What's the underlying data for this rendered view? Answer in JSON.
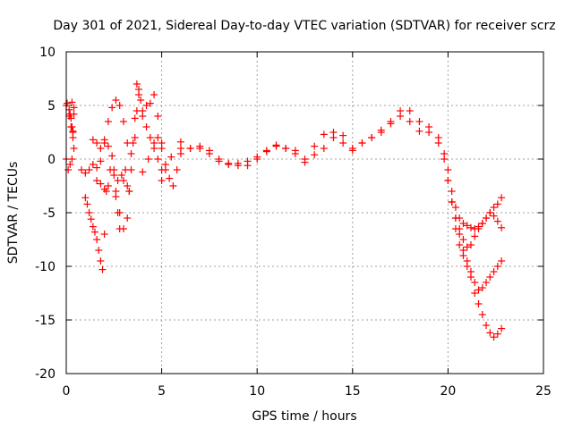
{
  "chart_data": {
    "type": "scatter",
    "title": "Day 301 of 2021, Sidereal Day-to-day VTEC variation (SDTVAR) for receiver scrz",
    "xlabel": "GPS time / hours",
    "ylabel": "SDTVAR / TECUs",
    "xlim": [
      0,
      25
    ],
    "ylim": [
      -20,
      10
    ],
    "xticks": [
      0,
      5,
      10,
      15,
      20,
      25
    ],
    "yticks": [
      -20,
      -15,
      -10,
      -5,
      0,
      5,
      10
    ],
    "grid": true,
    "marker": "+",
    "series": [
      {
        "name": "SDTVAR",
        "color": "#ff0000",
        "x": [
          0.0,
          0.15,
          0.25,
          0.35,
          0.4,
          0.3,
          0.2,
          0.1,
          0.0,
          0.05,
          0.15,
          0.25,
          0.35,
          0.4,
          0.3,
          0.2,
          0.3,
          0.35,
          0.4,
          0.8,
          1.0,
          1.2,
          1.4,
          1.6,
          1.8,
          2.0,
          2.1,
          2.2,
          2.3,
          2.5,
          2.7,
          2.9,
          3.0,
          3.1,
          3.2,
          3.3,
          1.0,
          1.1,
          1.2,
          1.3,
          1.4,
          1.5,
          1.6,
          1.7,
          1.8,
          1.9,
          2.0,
          1.4,
          1.6,
          1.8,
          2.0,
          2.2,
          2.4,
          2.5,
          2.6,
          2.7,
          2.8,
          1.6,
          1.8,
          2.0,
          2.2,
          2.4,
          2.6,
          2.8,
          3.0,
          3.2,
          3.4,
          3.6,
          3.7,
          3.8,
          3.9,
          4.0,
          4.2,
          4.4,
          4.6,
          4.8,
          5.0,
          2.6,
          2.8,
          3.0,
          3.2,
          3.3,
          3.4,
          3.5,
          3.6,
          3.7,
          3.8,
          4.0,
          4.2,
          4.4,
          4.6,
          4.8,
          5.0,
          5.2,
          4.0,
          4.3,
          4.6,
          4.8,
          5.0,
          5.2,
          5.4,
          5.6,
          5.8,
          6.0,
          5.0,
          5.5,
          6.0,
          6.5,
          7.0,
          7.5,
          8.0,
          8.5,
          9.0,
          9.5,
          10.0,
          10.5,
          11.0,
          11.5,
          12.0,
          12.5,
          13.0,
          13.5,
          14.0,
          14.5,
          15.0,
          15.5,
          16.0,
          16.5,
          17.0,
          17.5,
          18.0,
          18.5,
          19.0,
          19.5,
          6.0,
          6.5,
          7.0,
          7.5,
          8.0,
          8.5,
          9.0,
          9.5,
          10.0,
          10.5,
          11.0,
          11.5,
          12.0,
          12.5,
          13.0,
          13.5,
          14.0,
          14.5,
          15.0,
          15.5,
          16.0,
          16.5,
          17.0,
          17.5,
          18.0,
          18.5,
          19.0,
          19.5,
          19.8,
          20.0,
          20.2,
          20.4,
          20.6,
          20.8,
          21.0,
          21.2,
          21.4,
          21.6,
          21.8,
          22.0,
          22.2,
          22.4,
          22.6,
          22.8,
          20.0,
          20.2,
          20.4,
          20.6,
          20.8,
          21.0,
          21.2,
          21.4,
          21.6,
          21.8,
          22.0,
          22.2,
          22.4,
          22.6,
          22.8,
          20.2,
          20.4,
          20.6,
          20.8,
          21.0,
          21.2,
          21.4,
          21.6,
          21.8,
          22.0,
          22.2,
          22.4,
          22.6,
          22.8,
          19.8,
          20.0,
          20.2,
          20.4,
          20.6,
          20.8,
          21.0,
          21.2,
          21.4,
          21.6,
          21.8,
          22.0,
          22.2,
          22.4,
          22.6,
          22.8
        ],
        "y": [
          5.0,
          4.0,
          3.0,
          2.0,
          1.0,
          0.0,
          -0.5,
          -1.0,
          0.0,
          5.2,
          4.6,
          3.8,
          2.5,
          4.8,
          5.3,
          4.2,
          3.0,
          2.6,
          4.2,
          -1.0,
          -1.3,
          -1.0,
          -0.5,
          -2.0,
          -2.3,
          -2.8,
          -3.0,
          -2.5,
          -1.0,
          -1.5,
          -2.0,
          -1.5,
          -2.0,
          -1.0,
          -2.5,
          -3.0,
          -3.6,
          -4.2,
          -5.0,
          -5.6,
          -6.3,
          -6.8,
          -7.5,
          -8.5,
          -9.5,
          -10.3,
          -7.0,
          1.8,
          1.5,
          1.0,
          1.8,
          1.2,
          0.3,
          -1.0,
          -3.0,
          -5.0,
          -6.5,
          -0.8,
          -0.2,
          1.5,
          3.5,
          4.8,
          5.5,
          5.0,
          3.5,
          1.5,
          0.5,
          2.0,
          4.5,
          6.5,
          5.5,
          4.0,
          3.0,
          2.0,
          1.0,
          0.0,
          -2.0,
          -3.5,
          -5.0,
          -6.5,
          -5.5,
          -3.0,
          -1.0,
          1.5,
          3.8,
          7.0,
          6.0,
          4.5,
          5.0,
          5.2,
          6.0,
          4.0,
          1.5,
          -1.0,
          -1.2,
          0.0,
          1.5,
          2.0,
          1.0,
          -0.5,
          -1.8,
          -2.5,
          -1.0,
          1.0,
          -1.0,
          0.2,
          1.6,
          1.0,
          1.0,
          0.5,
          -0.2,
          -0.4,
          -0.6,
          -0.2,
          0.2,
          0.8,
          1.3,
          1.0,
          0.8,
          0.0,
          1.2,
          2.3,
          2.5,
          1.5,
          0.8,
          1.5,
          2.0,
          2.5,
          3.5,
          4.0,
          4.5,
          3.5,
          3.0,
          2.0,
          0.5,
          1.0,
          1.2,
          0.8,
          0.0,
          -0.5,
          -0.4,
          -0.6,
          0.0,
          0.7,
          1.2,
          1.0,
          0.5,
          -0.3,
          0.4,
          1.0,
          2.0,
          2.2,
          1.0,
          1.5,
          2.0,
          2.7,
          3.3,
          4.5,
          3.5,
          2.6,
          2.5,
          1.5,
          0.5,
          -1.0,
          -3.0,
          -4.5,
          -5.5,
          -6.0,
          -6.2,
          -6.4,
          -6.5,
          -6.3,
          -6.0,
          -5.5,
          -5.0,
          -5.3,
          -5.8,
          -6.4,
          -2.0,
          -4.0,
          -5.5,
          -6.5,
          -7.5,
          -8.2,
          -8.0,
          -7.2,
          -6.5,
          -6.0,
          -5.5,
          -5.0,
          -4.5,
          -4.2,
          -3.6,
          -4.0,
          -5.5,
          -7.0,
          -8.5,
          -9.5,
          -10.5,
          -11.5,
          -12.2,
          -12.0,
          -11.5,
          -11.0,
          -10.5,
          -10.0,
          -9.5,
          0.0,
          -2.0,
          -4.0,
          -6.5,
          -8.0,
          -9.0,
          -10.0,
          -11.0,
          -12.5,
          -13.5,
          -14.5,
          -15.5,
          -16.2,
          -16.6,
          -16.3,
          -15.8
        ]
      }
    ]
  }
}
